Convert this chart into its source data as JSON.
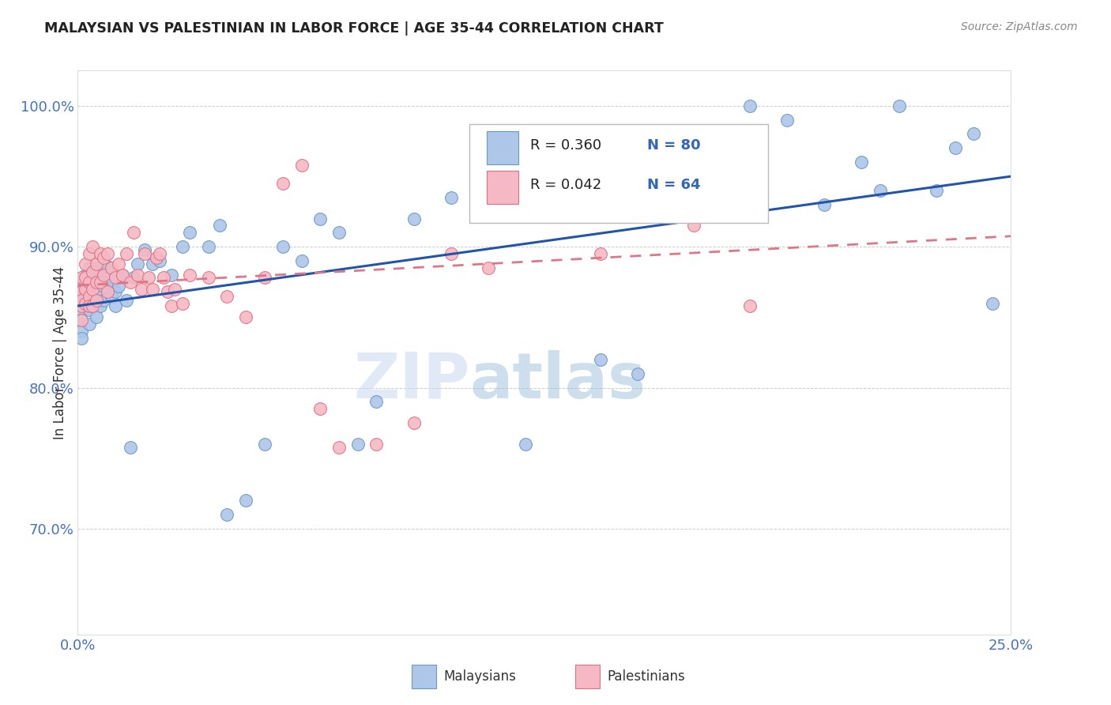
{
  "title": "MALAYSIAN VS PALESTINIAN IN LABOR FORCE | AGE 35-44 CORRELATION CHART",
  "source": "Source: ZipAtlas.com",
  "ylabel": "In Labor Force | Age 35-44",
  "y_ticks": [
    "70.0%",
    "80.0%",
    "90.0%",
    "100.0%"
  ],
  "y_tick_vals": [
    0.7,
    0.8,
    0.9,
    1.0
  ],
  "x_lim": [
    0.0,
    0.25
  ],
  "y_lim": [
    0.625,
    1.025
  ],
  "legend_R_malaysian": "R = 0.360",
  "legend_N_malaysian": "N = 80",
  "legend_R_palestinian": "R = 0.042",
  "legend_N_palestinian": "N = 64",
  "watermark": "ZIPatlas",
  "malaysian_color": "#aec6e8",
  "malaysian_edge": "#6699cc",
  "palestinian_color": "#f5b8c4",
  "palestinian_edge": "#e07080",
  "line_malaysian_color": "#2255aa",
  "line_palestinian_color": "#dd7788",
  "title_color": "#222222",
  "axis_color": "#4472c4",
  "malaysian_x": [
    0.001,
    0.001,
    0.001,
    0.001,
    0.001,
    0.001,
    0.001,
    0.002,
    0.002,
    0.002,
    0.002,
    0.002,
    0.003,
    0.003,
    0.003,
    0.003,
    0.003,
    0.004,
    0.004,
    0.004,
    0.004,
    0.004,
    0.005,
    0.005,
    0.005,
    0.005,
    0.006,
    0.006,
    0.006,
    0.007,
    0.007,
    0.007,
    0.008,
    0.008,
    0.009,
    0.009,
    0.01,
    0.01,
    0.011,
    0.012,
    0.013,
    0.014,
    0.015,
    0.016,
    0.018,
    0.02,
    0.022,
    0.025,
    0.028,
    0.03,
    0.035,
    0.038,
    0.04,
    0.045,
    0.05,
    0.055,
    0.06,
    0.065,
    0.07,
    0.075,
    0.08,
    0.09,
    0.1,
    0.11,
    0.12,
    0.13,
    0.14,
    0.15,
    0.16,
    0.17,
    0.18,
    0.19,
    0.2,
    0.21,
    0.215,
    0.22,
    0.23,
    0.235,
    0.24,
    0.245
  ],
  "malaysian_y": [
    0.862,
    0.87,
    0.875,
    0.855,
    0.848,
    0.84,
    0.835,
    0.868,
    0.858,
    0.88,
    0.875,
    0.865,
    0.878,
    0.885,
    0.862,
    0.855,
    0.845,
    0.882,
    0.87,
    0.86,
    0.875,
    0.865,
    0.885,
    0.875,
    0.862,
    0.85,
    0.878,
    0.87,
    0.858,
    0.882,
    0.872,
    0.862,
    0.886,
    0.875,
    0.876,
    0.865,
    0.868,
    0.858,
    0.872,
    0.88,
    0.862,
    0.758,
    0.878,
    0.888,
    0.898,
    0.888,
    0.89,
    0.88,
    0.9,
    0.91,
    0.9,
    0.915,
    0.71,
    0.72,
    0.76,
    0.9,
    0.89,
    0.92,
    0.91,
    0.76,
    0.79,
    0.92,
    0.935,
    0.94,
    0.76,
    0.94,
    0.82,
    0.81,
    0.975,
    0.96,
    1.0,
    0.99,
    0.93,
    0.96,
    0.94,
    1.0,
    0.94,
    0.97,
    0.98,
    0.86
  ],
  "palestinian_x": [
    0.001,
    0.001,
    0.001,
    0.001,
    0.001,
    0.002,
    0.002,
    0.002,
    0.002,
    0.003,
    0.003,
    0.003,
    0.003,
    0.004,
    0.004,
    0.004,
    0.004,
    0.005,
    0.005,
    0.005,
    0.006,
    0.006,
    0.007,
    0.007,
    0.008,
    0.008,
    0.009,
    0.01,
    0.011,
    0.012,
    0.013,
    0.014,
    0.015,
    0.016,
    0.017,
    0.018,
    0.019,
    0.02,
    0.021,
    0.022,
    0.023,
    0.024,
    0.025,
    0.026,
    0.028,
    0.03,
    0.035,
    0.04,
    0.045,
    0.05,
    0.055,
    0.06,
    0.065,
    0.07,
    0.08,
    0.09,
    0.1,
    0.11,
    0.12,
    0.13,
    0.14,
    0.15,
    0.165,
    0.18
  ],
  "palestinian_y": [
    0.868,
    0.878,
    0.858,
    0.848,
    0.862,
    0.878,
    0.87,
    0.86,
    0.888,
    0.875,
    0.865,
    0.858,
    0.895,
    0.882,
    0.87,
    0.858,
    0.9,
    0.888,
    0.875,
    0.862,
    0.895,
    0.875,
    0.892,
    0.88,
    0.868,
    0.895,
    0.885,
    0.878,
    0.888,
    0.88,
    0.895,
    0.875,
    0.91,
    0.88,
    0.87,
    0.895,
    0.878,
    0.87,
    0.892,
    0.895,
    0.878,
    0.868,
    0.858,
    0.87,
    0.86,
    0.88,
    0.878,
    0.865,
    0.85,
    0.878,
    0.945,
    0.958,
    0.785,
    0.758,
    0.76,
    0.775,
    0.895,
    0.885,
    0.962,
    0.975,
    0.895,
    0.962,
    0.915,
    0.858
  ]
}
